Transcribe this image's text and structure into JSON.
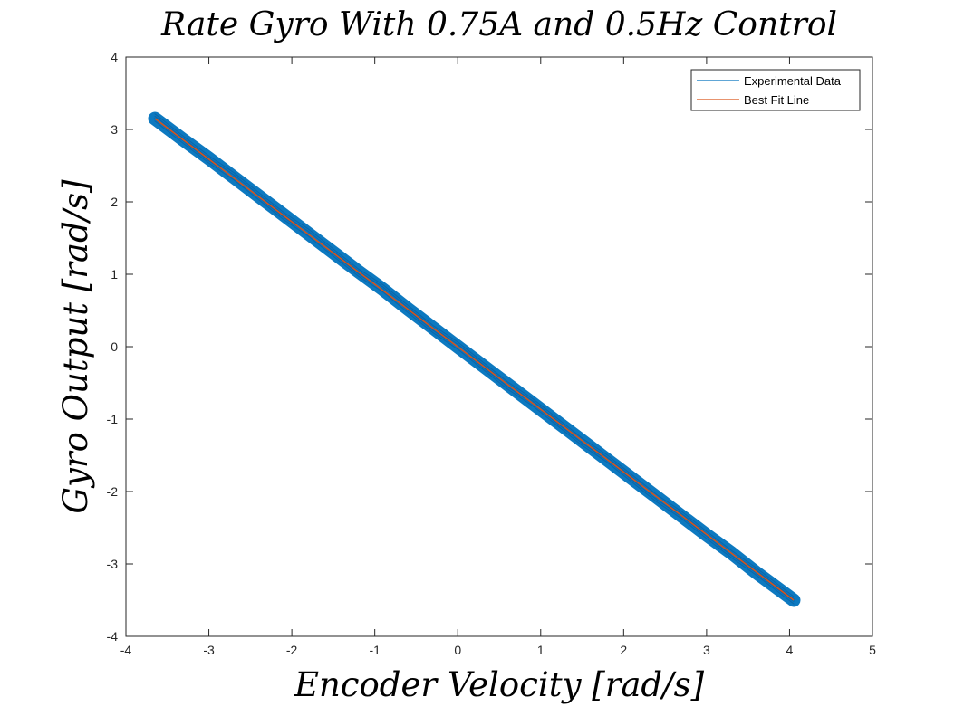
{
  "chart_data": {
    "type": "line",
    "title": "Rate Gyro With 0.75A and 0.5Hz Control",
    "xlabel": "Encoder Velocity [rad/s]",
    "ylabel": "Gyro Output [rad/s]",
    "xlim": [
      -4,
      5
    ],
    "ylim": [
      -4,
      4
    ],
    "x_ticks": [
      -4,
      -3,
      -2,
      -1,
      0,
      1,
      2,
      3,
      4,
      5
    ],
    "y_ticks": [
      -4,
      -3,
      -2,
      -1,
      0,
      1,
      2,
      3,
      4
    ],
    "x_tick_labels": [
      "-4",
      "-3",
      "-2",
      "-1",
      "0",
      "1",
      "2",
      "3",
      "4",
      "5"
    ],
    "y_tick_labels": [
      "-4",
      "-3",
      "-2",
      "-1",
      "0",
      "1",
      "2",
      "3",
      "4"
    ],
    "grid": false,
    "legend_position": "top-right",
    "series": [
      {
        "name": "Experimental Data",
        "color": "#0072BD",
        "x": [
          -3.65,
          -3.3,
          -3.0,
          -2.7,
          -2.4,
          -2.1,
          -1.8,
          -1.5,
          -1.2,
          -0.9,
          -0.6,
          -0.3,
          0.0,
          0.3,
          0.6,
          0.9,
          1.2,
          1.5,
          1.8,
          2.1,
          2.4,
          2.7,
          3.0,
          3.3,
          3.6,
          4.05
        ],
        "y": [
          3.15,
          2.85,
          2.6,
          2.34,
          2.08,
          1.82,
          1.56,
          1.3,
          1.04,
          0.79,
          0.52,
          0.26,
          0.0,
          -0.26,
          -0.52,
          -0.78,
          -1.04,
          -1.3,
          -1.56,
          -1.82,
          -2.08,
          -2.34,
          -2.6,
          -2.85,
          -3.12,
          -3.5
        ]
      },
      {
        "name": "Best Fit Line",
        "color": "#D95319",
        "x": [
          -3.65,
          4.05
        ],
        "y": [
          3.15,
          -3.5
        ]
      }
    ]
  }
}
